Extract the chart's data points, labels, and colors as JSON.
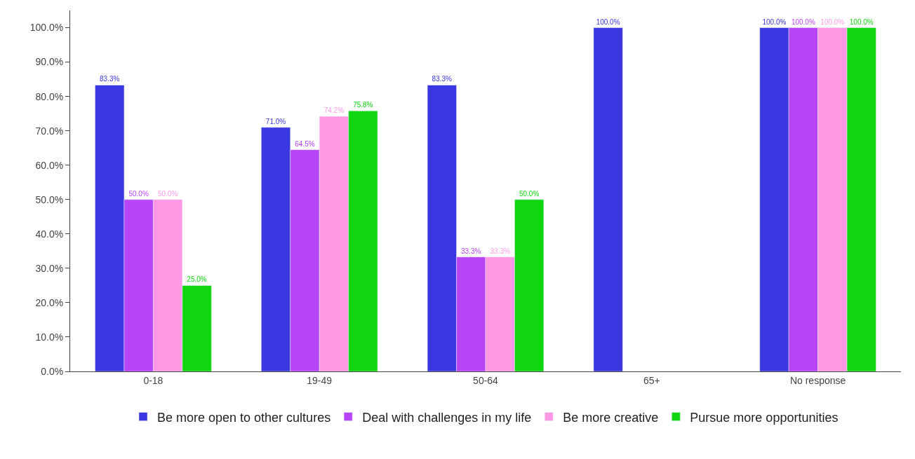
{
  "chart_data": {
    "type": "bar",
    "categories": [
      "0-18",
      "19-49",
      "50-64",
      "65+",
      "No response"
    ],
    "series": [
      {
        "name": "Be more open to other cultures",
        "color": "#3a36e0",
        "values": [
          83.3,
          71.0,
          83.3,
          100.0,
          100.0
        ],
        "value_labels": [
          "83.3%",
          "71.0%",
          "83.3%",
          "100.0%",
          "100.0%"
        ]
      },
      {
        "name": "Deal with challenges in my life",
        "color": "#b845f5",
        "values": [
          50.0,
          64.5,
          33.3,
          null,
          100.0
        ],
        "value_labels": [
          "50.0%",
          "64.5%",
          "33.3%",
          null,
          "100.0%"
        ]
      },
      {
        "name": "Be more creative",
        "color": "#ff99e6",
        "values": [
          50.0,
          74.2,
          33.3,
          null,
          100.0
        ],
        "value_labels": [
          "50.0%",
          "74.2%",
          "33.3%",
          null,
          "100.0%"
        ]
      },
      {
        "name": "Pursue more opportunities",
        "color": "#0fd60f",
        "values": [
          25.0,
          75.8,
          50.0,
          null,
          100.0
        ],
        "value_labels": [
          "25.0%",
          "75.8%",
          "50.0%",
          null,
          "100.0%"
        ]
      }
    ],
    "ylim": [
      0,
      105
    ],
    "yticks": [
      {
        "value": 0,
        "label": "0.0%"
      },
      {
        "value": 10,
        "label": "10.0%"
      },
      {
        "value": 20,
        "label": "20.0%"
      },
      {
        "value": 30,
        "label": "30.0%"
      },
      {
        "value": 40,
        "label": "40.0%"
      },
      {
        "value": 50,
        "label": "50.0%"
      },
      {
        "value": 60,
        "label": "60.0%"
      },
      {
        "value": 70,
        "label": "70.0%"
      },
      {
        "value": 80,
        "label": "80.0%"
      },
      {
        "value": 90,
        "label": "90.0%"
      },
      {
        "value": 100,
        "label": "100.0%"
      }
    ],
    "legend": "bottom"
  }
}
